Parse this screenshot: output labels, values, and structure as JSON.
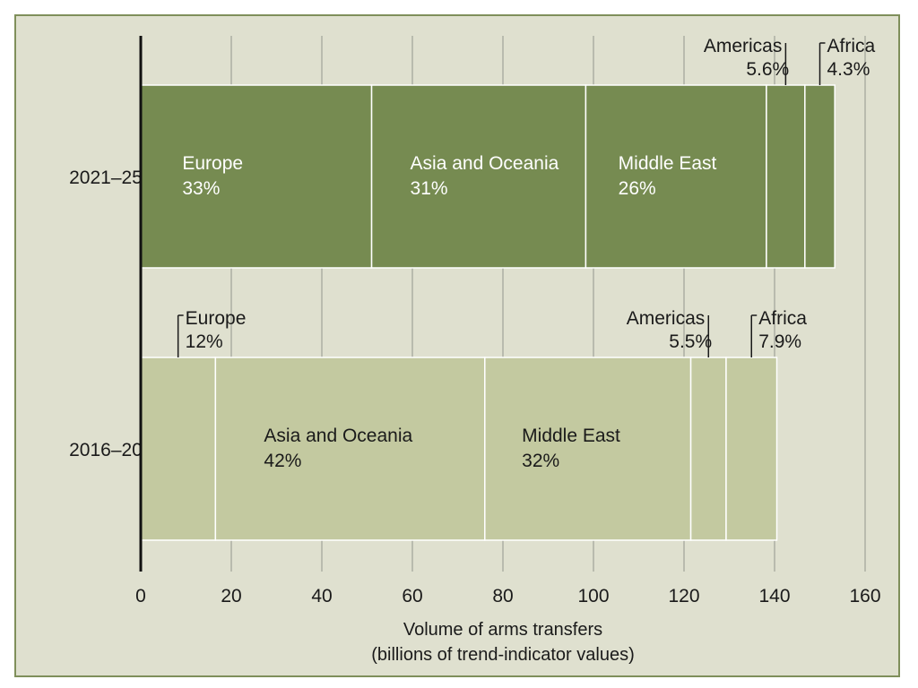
{
  "chart_data": {
    "type": "bar",
    "orientation": "horizontal",
    "stacked": true,
    "title": "",
    "xlabel": "Volume of arms transfers",
    "xlabel_sub": "(billions of trend-indicator values)",
    "ylabel": "",
    "xlim": [
      0,
      160
    ],
    "xticks": [
      0,
      20,
      40,
      60,
      80,
      100,
      120,
      140,
      160
    ],
    "grid": true,
    "categories": [
      "2021–25",
      "2016–20"
    ],
    "bar_colors": [
      "#768b51",
      "#c3c9a0"
    ],
    "series": [
      {
        "name": "Europe",
        "values": [
          51.0,
          16.5
        ],
        "labels": [
          "33%",
          "12%"
        ]
      },
      {
        "name": "Asia and Oceania",
        "values": [
          47.3,
          59.5
        ],
        "labels": [
          "31%",
          "42%"
        ]
      },
      {
        "name": "Middle East",
        "values": [
          39.9,
          45.5
        ],
        "labels": [
          "26%",
          "32%"
        ]
      },
      {
        "name": "Americas",
        "values": [
          8.5,
          7.8
        ],
        "labels": [
          "5.6%",
          "5.5%"
        ]
      },
      {
        "name": "Africa",
        "values": [
          6.6,
          11.2
        ],
        "labels": [
          "4.3%",
          "7.9%"
        ]
      }
    ]
  }
}
